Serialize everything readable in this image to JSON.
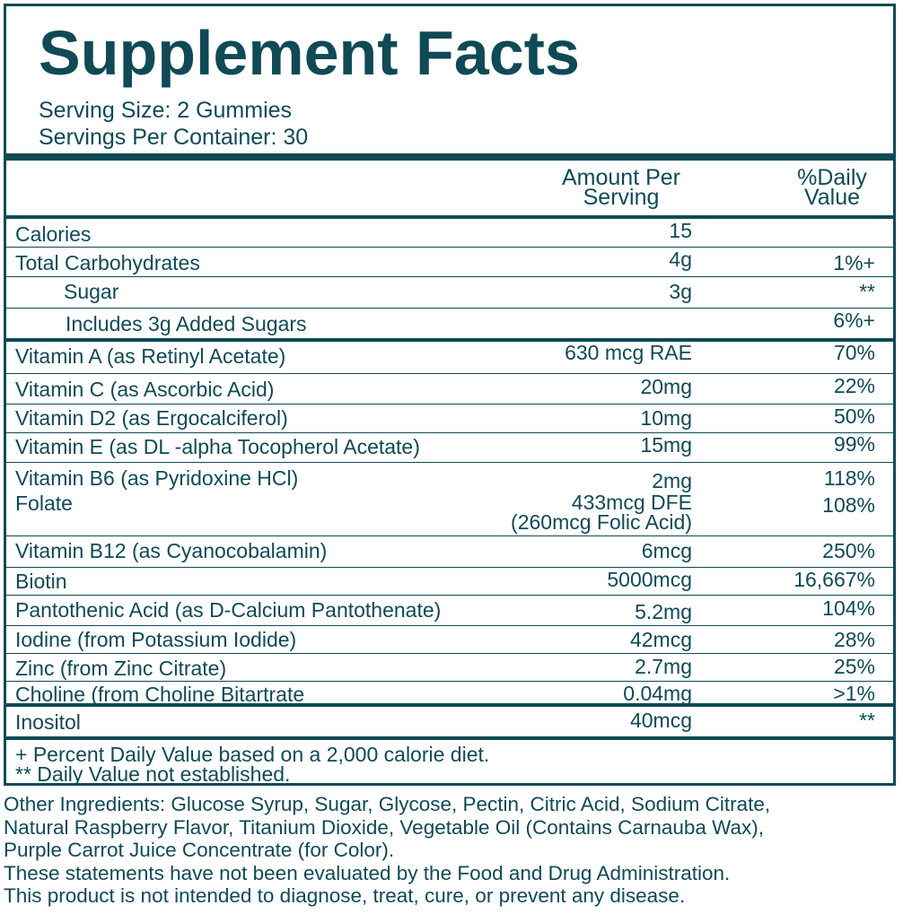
{
  "title": "Supplement Facts",
  "serving_size": "Serving Size: 2 Gummies",
  "servings_per_container": "Servings Per Container: 30",
  "headers": {
    "amount_line1": "Amount Per",
    "amount_line2": "Serving",
    "dv_line1": "%Daily",
    "dv_line2": "Value"
  },
  "rows": [
    {
      "name": "Calories",
      "amount": "15",
      "dv": ""
    },
    {
      "name": "Total Carbohydrates",
      "amount": "4g",
      "dv": "1%+"
    },
    {
      "name": "Sugar",
      "amount": "3g",
      "dv": "**"
    },
    {
      "name": "Includes 3g Added Sugars",
      "amount": "",
      "dv": "6%+"
    },
    {
      "name": "Vitamin A (as Retinyl Acetate)",
      "amount": "630 mcg RAE",
      "dv": "70%"
    },
    {
      "name": "Vitamin C (as Ascorbic Acid)",
      "amount": "20mg",
      "dv": "22%"
    },
    {
      "name": "Vitamin D2 (as Ergocalciferol)",
      "amount": "10mg",
      "dv": "50%"
    },
    {
      "name": "Vitamin E (as DL -alpha Tocopherol Acetate)",
      "amount": "15mg",
      "dv": "99%"
    },
    {
      "name": "Vitamin B6 (as Pyridoxine HCl)",
      "amount": "2mg",
      "dv": "118%"
    },
    {
      "name": "Folate",
      "amount": "433mcg DFE",
      "amount_sub": "(260mcg Folic Acid)",
      "dv": "108%"
    },
    {
      "name": "Vitamin B12 (as Cyanocobalamin)",
      "amount": "6mcg",
      "dv": "250%"
    },
    {
      "name": "Biotin",
      "amount": "5000mcg",
      "dv": "16,667%"
    },
    {
      "name": "Pantothenic Acid (as D-Calcium Pantothenate)",
      "amount": "5.2mg",
      "dv": "104%"
    },
    {
      "name": "Iodine (from Potassium Iodide)",
      "amount": "42mcg",
      "dv": "28%"
    },
    {
      "name": "Zinc (from Zinc Citrate)",
      "amount": "2.7mg",
      "dv": "25%"
    },
    {
      "name": "Choline (from Choline Bitartrate",
      "amount": "0.04mg",
      "dv": ">1%"
    },
    {
      "name": "Inositol",
      "amount": "40mcg",
      "dv": "**"
    }
  ],
  "footnotes": [
    "+ Percent Daily Value based on a 2,000 calorie diet.",
    "** Daily Value not established."
  ],
  "other_ingredients": "Other Ingredients: Glucose Syrup, Sugar, Glycose, Pectin, Citric Acid, Sodium Citrate,\nNatural Raspberry Flavor, Titanium Dioxide, Vegetable Oil (Contains Carnauba Wax),\nPurple Carrot Juice Concentrate (for Color).",
  "disclaimer_1": "These statements have not been evaluated by the Food and Drug Administration.",
  "disclaimer_2": "This product is not intended to diagnose, treat, cure, or prevent any disease.",
  "colors": {
    "ink": "#0f4a56",
    "background": "#ffffff"
  }
}
